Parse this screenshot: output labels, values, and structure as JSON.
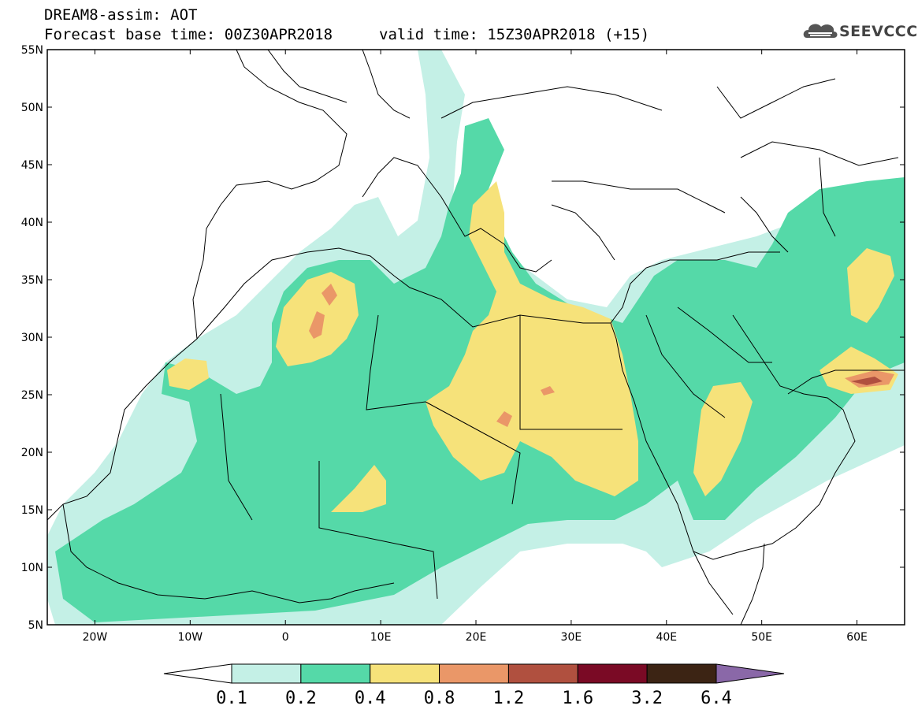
{
  "header": {
    "title_line1": "DREAM8-assim: AOT",
    "title_line2": "Forecast base time: 00Z30APR2018",
    "valid_time": "valid time: 15Z30APR2018 (+15)",
    "logo_text": "SEEVCCC",
    "logo_icon": "cloud-icon"
  },
  "map": {
    "variable": "AOT",
    "lon_range": [
      -25,
      65
    ],
    "lat_range": [
      5,
      55
    ],
    "lat_ticks": [
      {
        "value": 55,
        "label": "55N"
      },
      {
        "value": 50,
        "label": "50N"
      },
      {
        "value": 45,
        "label": "45N"
      },
      {
        "value": 40,
        "label": "40N"
      },
      {
        "value": 35,
        "label": "35N"
      },
      {
        "value": 30,
        "label": "30N"
      },
      {
        "value": 25,
        "label": "25N"
      },
      {
        "value": 20,
        "label": "20N"
      },
      {
        "value": 15,
        "label": "15N"
      },
      {
        "value": 10,
        "label": "10N"
      },
      {
        "value": 5,
        "label": "5N"
      }
    ],
    "lon_ticks": [
      {
        "value": -20,
        "label": "20W"
      },
      {
        "value": -10,
        "label": "10W"
      },
      {
        "value": 0,
        "label": "0"
      },
      {
        "value": 10,
        "label": "10E"
      },
      {
        "value": 20,
        "label": "20E"
      },
      {
        "value": 30,
        "label": "30E"
      },
      {
        "value": 40,
        "label": "40E"
      },
      {
        "value": 50,
        "label": "50E"
      },
      {
        "value": 60,
        "label": "60E"
      }
    ]
  },
  "legend": {
    "levels": [
      "0.1",
      "0.2",
      "0.4",
      "0.8",
      "1.2",
      "1.6",
      "3.2",
      "6.4"
    ],
    "colors": [
      "#ffffff",
      "#c4f0e6",
      "#55d9a8",
      "#f6e27a",
      "#ea9768",
      "#b0503f",
      "#7a0a25",
      "#3c2414",
      "#8a68a8"
    ]
  }
}
